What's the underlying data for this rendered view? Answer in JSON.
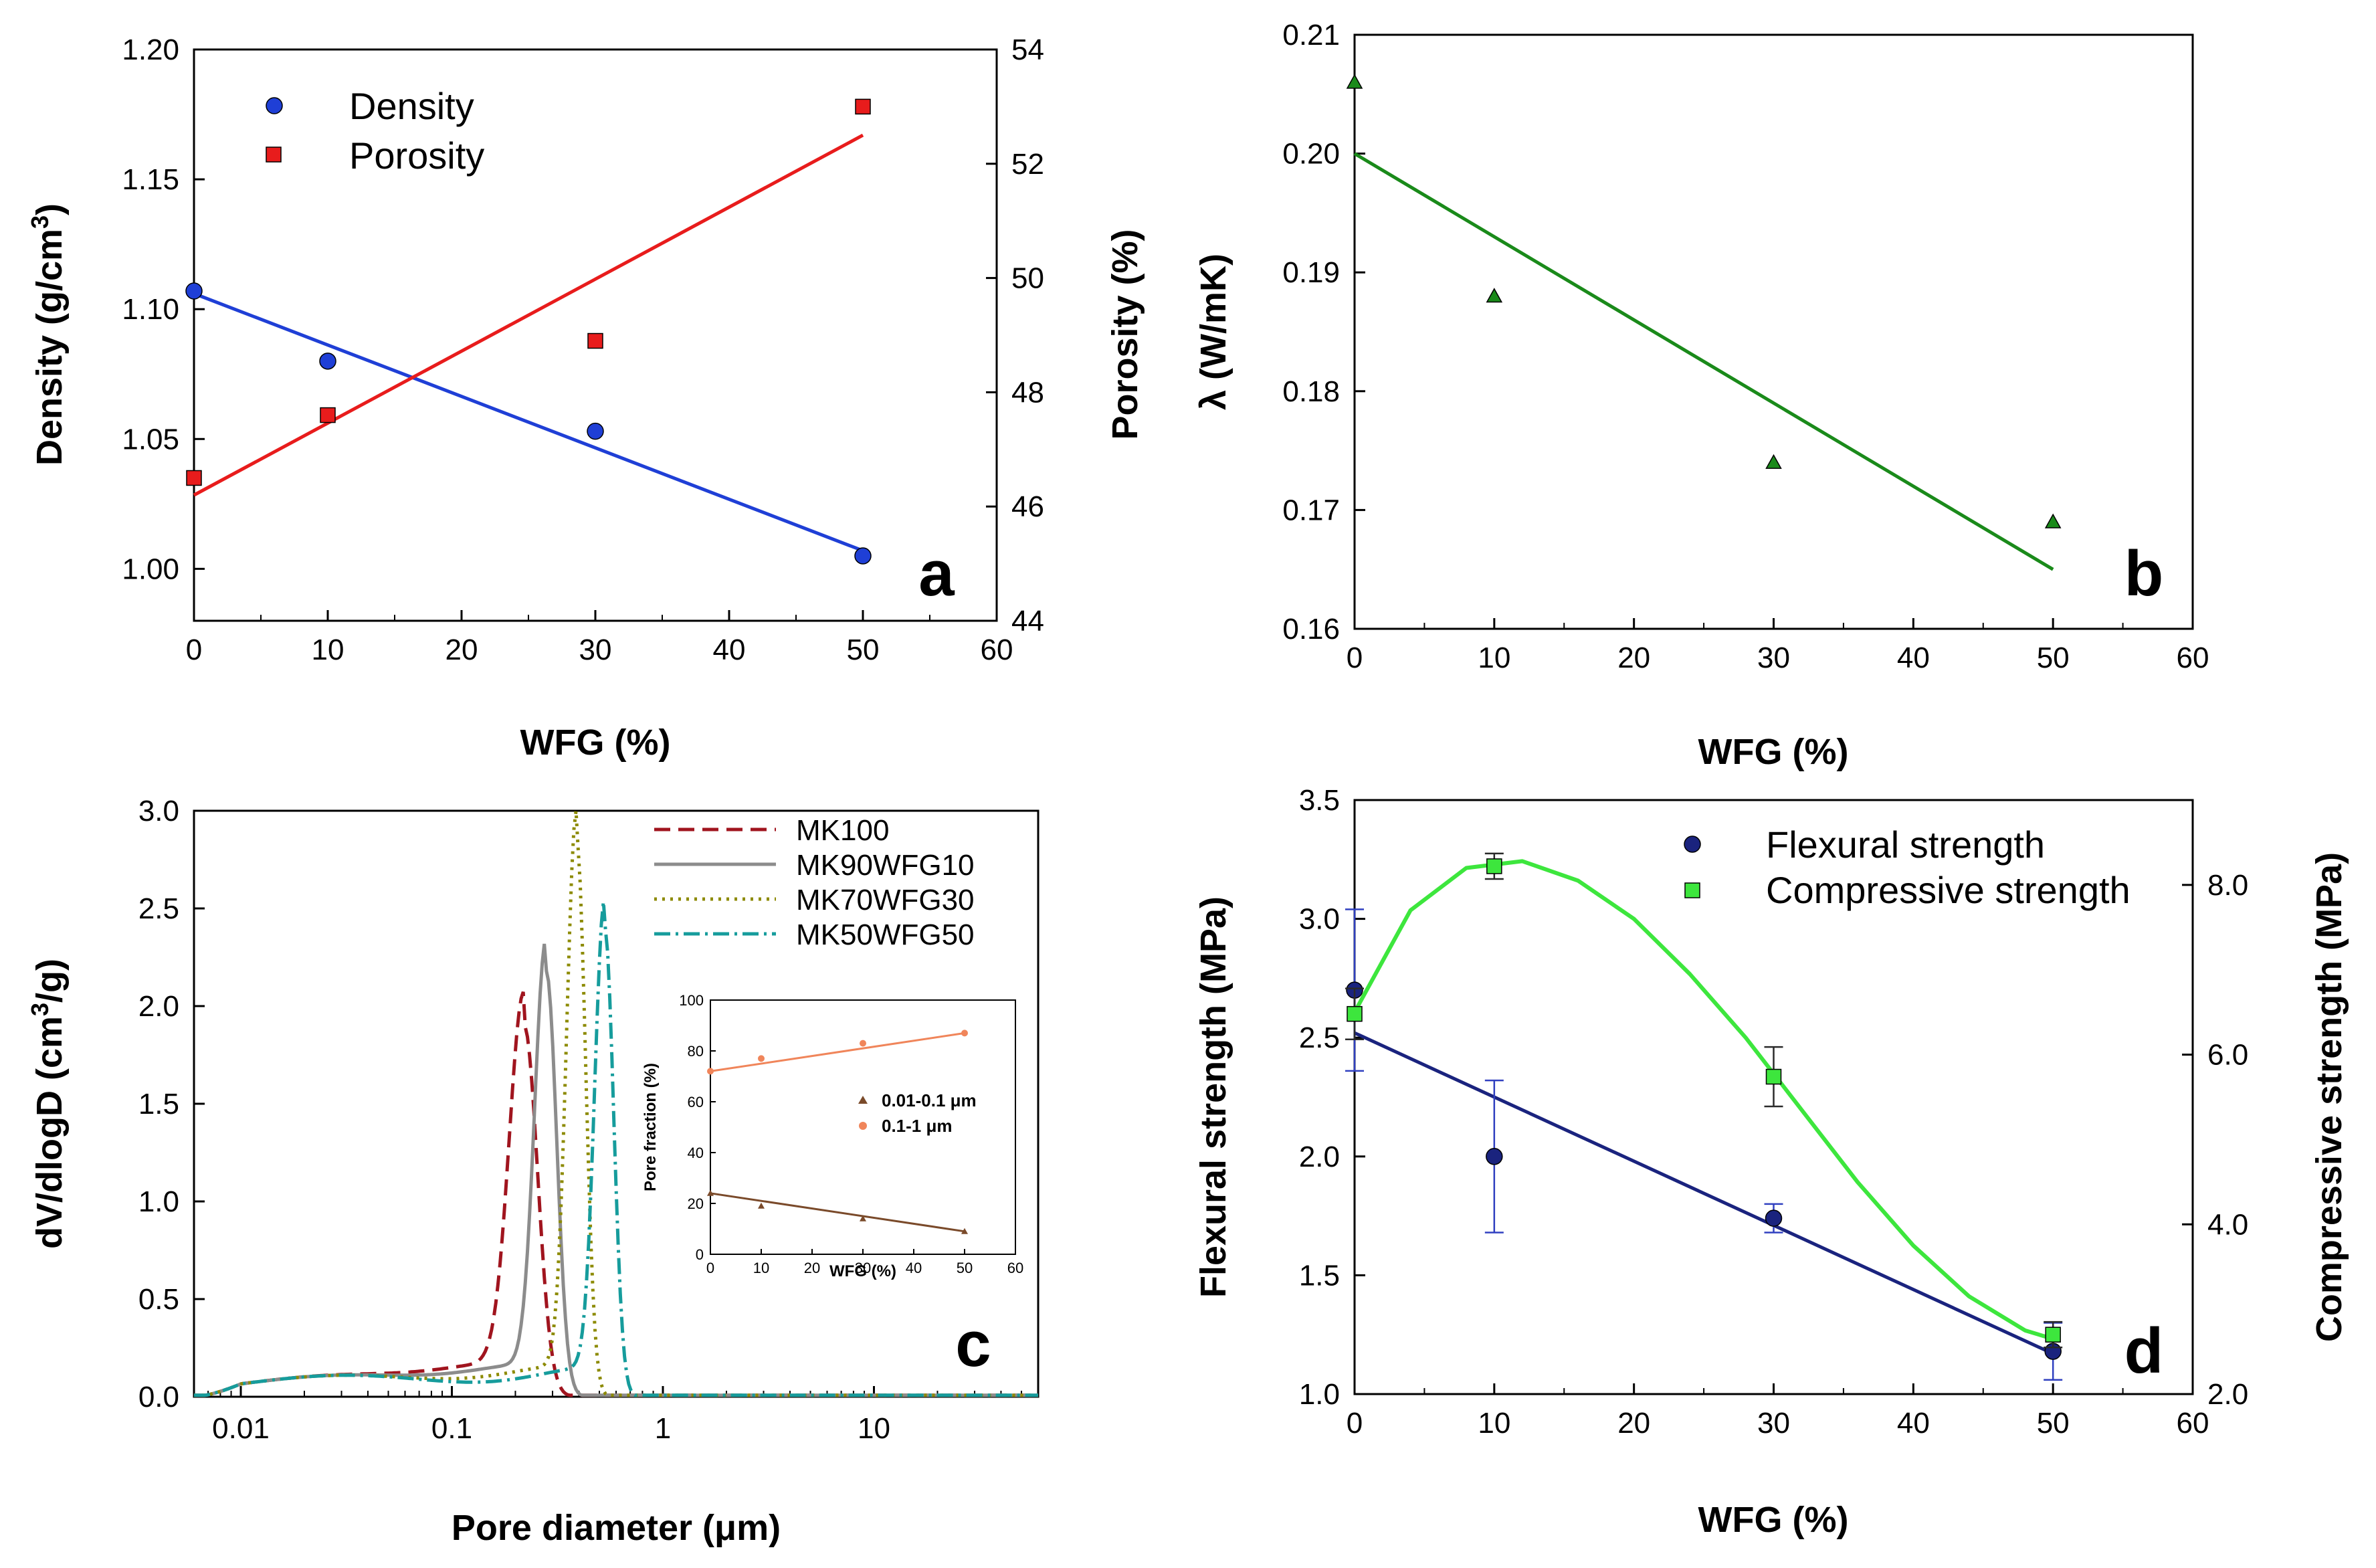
{
  "chart_data": [
    {
      "panel": "a",
      "type": "scatter",
      "xlabel": "WFG (%)",
      "ylabel": "Density (g/cm",
      "ylabel_sup": "3",
      "ylabel_close": ")",
      "y2label": "Porosity (%)",
      "xlim": [
        0,
        60
      ],
      "xticks": [
        "0",
        "10",
        "20",
        "30",
        "40",
        "50",
        "60"
      ],
      "ylim": [
        0.98,
        1.2
      ],
      "yticks": [
        "1.00",
        "1.05",
        "1.10",
        "1.15",
        "1.20"
      ],
      "y2lim": [
        44,
        54
      ],
      "y2ticks": [
        "44",
        "46",
        "48",
        "50",
        "52",
        "54"
      ],
      "series": [
        {
          "name": "Density",
          "axis": "left",
          "color": "#1f3fd6",
          "marker": "circle",
          "x": [
            0,
            10,
            30,
            50
          ],
          "y": [
            1.107,
            1.08,
            1.053,
            1.005
          ],
          "fit": {
            "x": [
              0,
              50
            ],
            "y": [
              1.106,
              1.007
            ]
          }
        },
        {
          "name": "Porosity",
          "axis": "right",
          "color": "#e81c1c",
          "marker": "square",
          "x": [
            0,
            10,
            30,
            50
          ],
          "y": [
            46.5,
            47.6,
            48.9,
            53.0
          ],
          "fit": {
            "x": [
              0,
              50
            ],
            "y": [
              46.2,
              52.5
            ]
          }
        }
      ]
    },
    {
      "panel": "b",
      "type": "scatter",
      "xlabel": "WFG (%)",
      "ylabel": "λ (W/mK)",
      "xlim": [
        0,
        60
      ],
      "xticks": [
        "0",
        "10",
        "20",
        "30",
        "40",
        "50",
        "60"
      ],
      "ylim": [
        0.16,
        0.21
      ],
      "yticks": [
        "0.16",
        "0.17",
        "0.18",
        "0.19",
        "0.20",
        "0.21"
      ],
      "series": [
        {
          "name": "λ",
          "color": "#1a8a1a",
          "marker": "triangle",
          "x": [
            0,
            10,
            30,
            50
          ],
          "y": [
            0.206,
            0.188,
            0.174,
            0.169
          ],
          "fit": {
            "x": [
              0,
              50
            ],
            "y": [
              0.2,
              0.165
            ]
          }
        }
      ]
    },
    {
      "panel": "c",
      "type": "line",
      "xscale": "log",
      "xlabel": "Pore diameter (μm)",
      "ylabel": "dV/dlogD (cm",
      "ylabel_sup": "3",
      "ylabel_close": "/g)",
      "xlim": [
        0.006,
        60
      ],
      "xticks": [
        "0.01",
        "0.1",
        "1",
        "10"
      ],
      "ylim": [
        0,
        3
      ],
      "yticks": [
        "0.0",
        "0.5",
        "1.0",
        "1.5",
        "2.0",
        "2.5",
        "3.0"
      ],
      "series": [
        {
          "name": "MK100",
          "color": "#a0141e",
          "dash": "24,12",
          "peak": 0.22,
          "height": 1.9,
          "width": 0.09
        },
        {
          "name": "MK90WFG10",
          "color": "#8c8c8c",
          "dash": "none",
          "peak": 0.28,
          "height": 2.18,
          "width": 0.07
        },
        {
          "name": "MK70WFG30",
          "color": "#8c8a00",
          "dash": "4,8",
          "peak": 0.39,
          "height": 2.85,
          "width": 0.06
        },
        {
          "name": "MK50WFG50",
          "color": "#169c9c",
          "dash": "24,8,4,8",
          "peak": 0.53,
          "height": 2.4,
          "width": 0.06
        }
      ],
      "inset": {
        "xlabel": "WFG (%)",
        "ylabel": "Pore fraction (%)",
        "xlim": [
          0,
          60
        ],
        "xticks": [
          "0",
          "10",
          "20",
          "30",
          "40",
          "50",
          "60"
        ],
        "ylim": [
          0,
          100
        ],
        "yticks": [
          "0",
          "20",
          "40",
          "60",
          "80",
          "100"
        ],
        "series": [
          {
            "name": "0.01-0.1 μm",
            "color": "#7a4a2a",
            "marker": "triangle",
            "x": [
              0,
              10,
              30,
              50
            ],
            "y": [
              24,
              19,
              14,
              9
            ]
          },
          {
            "name": "0.1-1 μm",
            "color": "#f0855a",
            "marker": "circle",
            "x": [
              0,
              10,
              30,
              50
            ],
            "y": [
              72,
              77,
              83,
              87
            ]
          }
        ]
      }
    },
    {
      "panel": "d",
      "type": "scatter",
      "xlabel": "WFG (%)",
      "ylabel": "Flexural strength (MPa)",
      "y2label": "Compressive strength (MPa)",
      "xlim": [
        0,
        60
      ],
      "xticks": [
        "0",
        "10",
        "20",
        "30",
        "40",
        "50",
        "60"
      ],
      "ylim": [
        1.0,
        3.5
      ],
      "yticks": [
        "1.0",
        "1.5",
        "2.0",
        "2.5",
        "3.0",
        "3.5"
      ],
      "y2lim": [
        2.0,
        9.0
      ],
      "y2ticks": [
        "2.0",
        "4.0",
        "6.0",
        "8.0"
      ],
      "series": [
        {
          "name": "Flexural strength",
          "axis": "left",
          "color": "#1a237e",
          "marker": "circle",
          "x": [
            0,
            10,
            30,
            50
          ],
          "y": [
            2.7,
            2.0,
            1.74,
            1.18
          ],
          "err": [
            0.34,
            0.32,
            0.06,
            0.12
          ],
          "fit": {
            "x": [
              0,
              50
            ],
            "y": [
              2.52,
              1.17
            ]
          }
        },
        {
          "name": "Compressive strength",
          "axis": "right",
          "color": "#3de63d",
          "marker": "square",
          "x": [
            0,
            10,
            30,
            50
          ],
          "y": [
            6.48,
            8.22,
            5.74,
            2.7
          ],
          "err": [
            0.3,
            0.15,
            0.35,
            0.15
          ],
          "curve": {
            "x": [
              0,
              4,
              8,
              12,
              16,
              20,
              24,
              28,
              32,
              36,
              40,
              44,
              48,
              50
            ],
            "y": [
              6.5,
              7.7,
              8.2,
              8.28,
              8.05,
              7.6,
              6.95,
              6.2,
              5.35,
              4.5,
              3.75,
              3.15,
              2.75,
              2.65
            ]
          }
        }
      ]
    }
  ]
}
